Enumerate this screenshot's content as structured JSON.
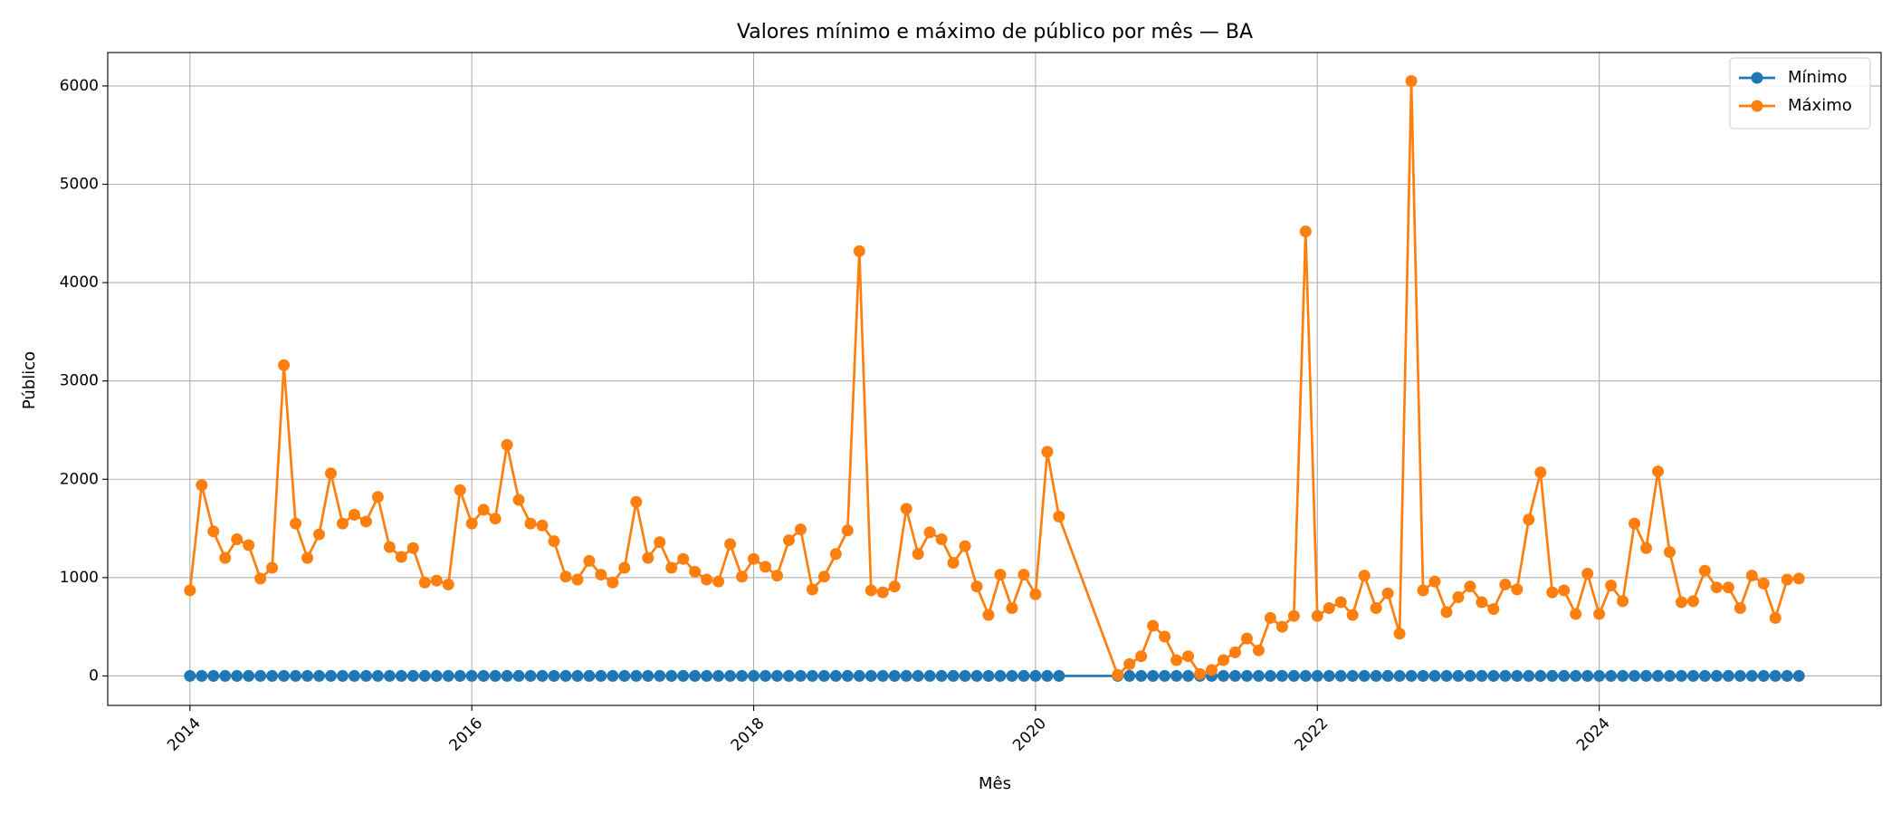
{
  "chart_data": {
    "type": "line",
    "title": "Valores mínimo e máximo de público por mês — BA",
    "x_label": "Mês",
    "y_label": "Público",
    "x": [
      "2014-01",
      "2014-02",
      "2014-03",
      "2014-04",
      "2014-05",
      "2014-06",
      "2014-07",
      "2014-08",
      "2014-09",
      "2014-10",
      "2014-11",
      "2014-12",
      "2015-01",
      "2015-02",
      "2015-03",
      "2015-04",
      "2015-05",
      "2015-06",
      "2015-07",
      "2015-08",
      "2015-09",
      "2015-10",
      "2015-11",
      "2015-12",
      "2016-01",
      "2016-02",
      "2016-03",
      "2016-04",
      "2016-05",
      "2016-06",
      "2016-07",
      "2016-08",
      "2016-09",
      "2016-10",
      "2016-11",
      "2016-12",
      "2017-01",
      "2017-02",
      "2017-03",
      "2017-04",
      "2017-05",
      "2017-06",
      "2017-07",
      "2017-08",
      "2017-09",
      "2017-10",
      "2017-11",
      "2017-12",
      "2018-01",
      "2018-02",
      "2018-03",
      "2018-04",
      "2018-05",
      "2018-06",
      "2018-07",
      "2018-08",
      "2018-09",
      "2018-10",
      "2018-11",
      "2018-12",
      "2019-01",
      "2019-02",
      "2019-03",
      "2019-04",
      "2019-05",
      "2019-06",
      "2019-07",
      "2019-08",
      "2019-09",
      "2019-10",
      "2019-11",
      "2019-12",
      "2020-01",
      "2020-02",
      "2020-03",
      "2020-08",
      "2020-09",
      "2020-10",
      "2020-11",
      "2020-12",
      "2021-01",
      "2021-02",
      "2021-03",
      "2021-04",
      "2021-05",
      "2021-06",
      "2021-07",
      "2021-08",
      "2021-09",
      "2021-10",
      "2021-11",
      "2021-12",
      "2022-01",
      "2022-02",
      "2022-03",
      "2022-04",
      "2022-05",
      "2022-06",
      "2022-07",
      "2022-08",
      "2022-09",
      "2022-10",
      "2022-11",
      "2022-12",
      "2023-01",
      "2023-02",
      "2023-03",
      "2023-04",
      "2023-05",
      "2023-06",
      "2023-07",
      "2023-08",
      "2023-09",
      "2023-10",
      "2023-11",
      "2023-12",
      "2024-01",
      "2024-02",
      "2024-03",
      "2024-04",
      "2024-05",
      "2024-06",
      "2024-07",
      "2024-08",
      "2024-09",
      "2024-10",
      "2024-11",
      "2024-12",
      "2025-01",
      "2025-02",
      "2025-03",
      "2025-04",
      "2025-05",
      "2025-06"
    ],
    "series": [
      {
        "name": "Mínimo",
        "color": "#1f77b4",
        "values": [
          0,
          0,
          0,
          0,
          0,
          0,
          0,
          0,
          0,
          0,
          0,
          0,
          0,
          0,
          0,
          0,
          0,
          0,
          0,
          0,
          0,
          0,
          0,
          0,
          0,
          0,
          0,
          0,
          0,
          0,
          0,
          0,
          0,
          0,
          0,
          0,
          0,
          0,
          0,
          0,
          0,
          0,
          0,
          0,
          0,
          0,
          0,
          0,
          0,
          0,
          0,
          0,
          0,
          0,
          0,
          0,
          0,
          0,
          0,
          0,
          0,
          0,
          0,
          0,
          0,
          0,
          0,
          0,
          0,
          0,
          0,
          0,
          0,
          0,
          0,
          0,
          0,
          0,
          0,
          0,
          0,
          0,
          0,
          0,
          0,
          0,
          0,
          0,
          0,
          0,
          0,
          0,
          0,
          0,
          0,
          0,
          0,
          0,
          0,
          0,
          0,
          0,
          0,
          0,
          0,
          0,
          0,
          0,
          0,
          0,
          0,
          0,
          0,
          0,
          0,
          0,
          0,
          0,
          0,
          0,
          0,
          0,
          0,
          0,
          0,
          0,
          0,
          0,
          0,
          0,
          0,
          0,
          0,
          0
        ]
      },
      {
        "name": "Máximo",
        "color": "#ff7f0e",
        "values": [
          870,
          1940,
          1470,
          1200,
          1390,
          1330,
          990,
          1100,
          3160,
          1550,
          1200,
          1440,
          2060,
          1550,
          1640,
          1570,
          1820,
          1310,
          1210,
          1300,
          950,
          970,
          930,
          1890,
          1550,
          1690,
          1600,
          2350,
          1790,
          1550,
          1530,
          1370,
          1010,
          980,
          1170,
          1030,
          950,
          1100,
          1770,
          1200,
          1360,
          1100,
          1190,
          1060,
          980,
          960,
          1340,
          1010,
          1190,
          1110,
          1020,
          1380,
          1490,
          880,
          1010,
          1240,
          1480,
          4320,
          870,
          850,
          910,
          1700,
          1240,
          1460,
          1390,
          1150,
          1320,
          910,
          620,
          1030,
          690,
          1030,
          830,
          2280,
          1620,
          10,
          120,
          200,
          510,
          400,
          160,
          200,
          20,
          60,
          160,
          240,
          380,
          260,
          590,
          500,
          610,
          4520,
          610,
          690,
          750,
          620,
          1020,
          690,
          840,
          430,
          6050,
          870,
          960,
          650,
          800,
          910,
          750,
          680,
          930,
          880,
          1590,
          2070,
          850,
          870,
          630,
          1040,
          630,
          920,
          760,
          1550,
          1300,
          2080,
          1260,
          750,
          760,
          1070,
          900,
          900,
          690,
          1020,
          940,
          590,
          980,
          990
        ]
      }
    ],
    "xlim": [
      "2013-06",
      "2026-01"
    ],
    "xticks": [
      {
        "value": "2014-01",
        "label": "2014"
      },
      {
        "value": "2016-01",
        "label": "2016"
      },
      {
        "value": "2018-01",
        "label": "2018"
      },
      {
        "value": "2020-01",
        "label": "2020"
      },
      {
        "value": "2022-01",
        "label": "2022"
      },
      {
        "value": "2024-01",
        "label": "2024"
      }
    ],
    "ylim": [
      -300,
      6340
    ],
    "yticks": [
      0,
      1000,
      2000,
      3000,
      4000,
      5000,
      6000
    ],
    "grid": true,
    "markers": true,
    "legend": "upper right"
  }
}
